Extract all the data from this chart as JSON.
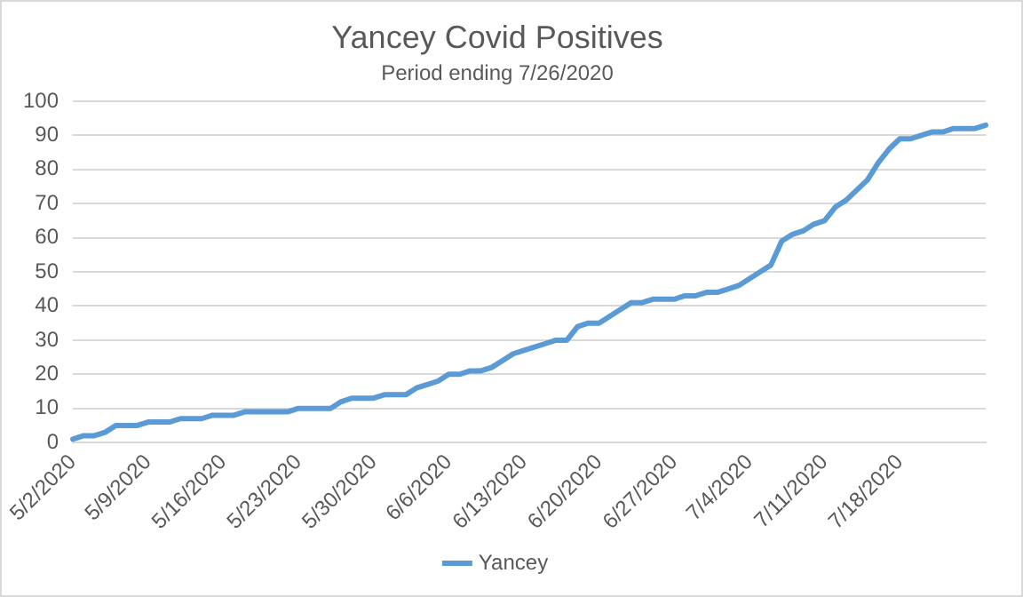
{
  "chart_data": {
    "type": "line",
    "title": "Yancey Covid Positives",
    "subtitle": "Period ending 7/26/2020",
    "categories": [
      "5/2/2020",
      null,
      null,
      null,
      null,
      null,
      null,
      "5/9/2020",
      null,
      null,
      null,
      null,
      null,
      null,
      "5/16/2020",
      null,
      null,
      null,
      null,
      null,
      null,
      "5/23/2020",
      null,
      null,
      null,
      null,
      null,
      null,
      "5/30/2020",
      null,
      null,
      null,
      null,
      null,
      null,
      "6/6/2020",
      null,
      null,
      null,
      null,
      null,
      null,
      "6/13/2020",
      null,
      null,
      null,
      null,
      null,
      null,
      "6/20/2020",
      null,
      null,
      null,
      null,
      null,
      null,
      "6/27/2020",
      null,
      null,
      null,
      null,
      null,
      null,
      "7/4/2020",
      null,
      null,
      null,
      null,
      null,
      null,
      "7/11/2020",
      null,
      null,
      null,
      null,
      null,
      null,
      "7/18/2020",
      null,
      null,
      null,
      null,
      null,
      null,
      null,
      null
    ],
    "series": [
      {
        "name": "Yancey",
        "color": "#5b9bd5",
        "values": [
          1,
          2,
          2,
          3,
          5,
          5,
          5,
          6,
          6,
          6,
          7,
          7,
          7,
          8,
          8,
          8,
          9,
          9,
          9,
          9,
          9,
          10,
          10,
          10,
          10,
          12,
          13,
          13,
          13,
          14,
          14,
          14,
          16,
          17,
          18,
          20,
          20,
          21,
          21,
          22,
          24,
          26,
          27,
          28,
          29,
          30,
          30,
          34,
          35,
          35,
          37,
          39,
          41,
          41,
          42,
          42,
          42,
          43,
          43,
          44,
          44,
          45,
          46,
          48,
          50,
          52,
          59,
          61,
          62,
          64,
          65,
          69,
          71,
          74,
          77,
          82,
          86,
          89,
          89,
          90,
          91,
          91,
          92,
          92,
          92,
          93
        ]
      }
    ],
    "ylim": [
      0,
      100
    ],
    "yticks": [
      0,
      10,
      20,
      30,
      40,
      50,
      60,
      70,
      80,
      90,
      100
    ],
    "grid": "y",
    "legend": "bottom",
    "marker": "none",
    "line_style": "solid"
  }
}
